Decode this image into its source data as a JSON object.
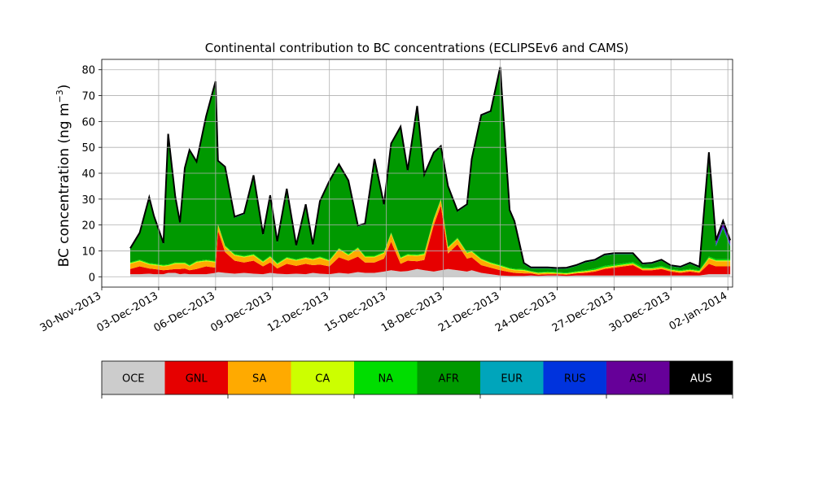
{
  "chart_data": {
    "type": "area",
    "stacked": true,
    "title": "Continental contribution to BC concentrations (ECLIPSEv6 and CAMS)",
    "xlabel": "",
    "ylabel": "BC concentration (ng m",
    "ylabel_unit_sup": "−3",
    "ylabel_close": ")",
    "ylim": [
      -4,
      84
    ],
    "xlim": [
      "2013-11-30T00:00",
      "2014-01-02T06:00"
    ],
    "grid": true,
    "yticks": [
      0,
      10,
      20,
      30,
      40,
      50,
      60,
      70,
      80
    ],
    "xticks": [
      "30-Nov-2013",
      "03-Dec-2013",
      "06-Dec-2013",
      "09-Dec-2013",
      "12-Dec-2013",
      "15-Dec-2013",
      "18-Dec-2013",
      "21-Dec-2013",
      "24-Dec-2013",
      "27-Dec-2013",
      "30-Dec-2013",
      "02-Jan-2014"
    ],
    "x": [
      "2013-12-01T12:00",
      "2013-12-02T00:00",
      "2013-12-02T12:00",
      "2013-12-02T18:00",
      "2013-12-03T06:00",
      "2013-12-03T12:00",
      "2013-12-03T21:00",
      "2013-12-04T03:00",
      "2013-12-04T09:00",
      "2013-12-04T15:00",
      "2013-12-05T00:00",
      "2013-12-05T12:00",
      "2013-12-06T00:00",
      "2013-12-06T03:00",
      "2013-12-06T12:00",
      "2013-12-07T00:00",
      "2013-12-07T12:00",
      "2013-12-08T00:00",
      "2013-12-08T12:00",
      "2013-12-08T21:00",
      "2013-12-09T06:00",
      "2013-12-09T18:00",
      "2013-12-10T06:00",
      "2013-12-10T18:00",
      "2013-12-11T03:00",
      "2013-12-11T12:00",
      "2013-12-12T00:00",
      "2013-12-12T12:00",
      "2013-12-13T00:00",
      "2013-12-13T12:00",
      "2013-12-13T21:00",
      "2013-12-14T09:00",
      "2013-12-14T21:00",
      "2013-12-15T06:00",
      "2013-12-15T18:00",
      "2013-12-16T03:00",
      "2013-12-16T15:00",
      "2013-12-17T00:00",
      "2013-12-17T12:00",
      "2013-12-17T21:00",
      "2013-12-18T06:00",
      "2013-12-18T18:00",
      "2013-12-19T06:00",
      "2013-12-19T12:00",
      "2013-12-20T00:00",
      "2013-12-20T12:00",
      "2013-12-21T00:00",
      "2013-12-21T12:00",
      "2013-12-21T18:00",
      "2013-12-22T06:00",
      "2013-12-22T15:00",
      "2013-12-23T00:00",
      "2013-12-23T12:00",
      "2013-12-24T00:00",
      "2013-12-24T12:00",
      "2013-12-25T00:00",
      "2013-12-25T12:00",
      "2013-12-26T00:00",
      "2013-12-26T12:00",
      "2013-12-27T00:00",
      "2013-12-27T12:00",
      "2013-12-28T00:00",
      "2013-12-28T12:00",
      "2013-12-29T00:00",
      "2013-12-29T12:00",
      "2013-12-30T00:00",
      "2013-12-30T12:00",
      "2013-12-31T00:00",
      "2013-12-31T12:00",
      "2014-01-01T00:00",
      "2014-01-01T09:00",
      "2014-01-01T18:00",
      "2014-01-02T03:00"
    ],
    "series": [
      {
        "name": "OCE",
        "color": "#cccccc",
        "values": [
          1,
          1,
          1.2,
          1,
          1,
          1.5,
          1.5,
          1,
          1.2,
          1,
          1,
          1,
          1.5,
          1.8,
          1.5,
          1.2,
          1.5,
          1.2,
          1,
          1.5,
          1.2,
          1,
          1.2,
          1,
          1.5,
          1.2,
          1,
          1.5,
          1.2,
          1.8,
          1.5,
          1.5,
          2,
          2.5,
          2,
          2.2,
          3,
          2.5,
          2,
          2.5,
          3,
          2.5,
          2,
          2.5,
          1.5,
          1,
          0.5,
          0.3,
          0.3,
          0.3,
          0.5,
          0.3,
          0.5,
          0.5,
          0.3,
          0.5,
          0.5,
          0.5,
          0.5,
          0.5,
          0.5,
          0.5,
          0.5,
          0.5,
          0.5,
          0.5,
          0.5,
          0.5,
          0.5,
          1,
          1,
          1,
          1
        ]
      },
      {
        "name": "GNL",
        "color": "#e60000",
        "values": [
          2,
          3,
          2,
          2,
          1.5,
          1.2,
          1.5,
          2,
          2,
          1.5,
          2,
          3,
          2,
          16,
          8,
          5,
          4,
          5,
          3,
          4,
          2,
          4,
          3,
          4,
          3,
          3.5,
          3,
          6,
          5,
          6,
          4,
          4,
          5,
          11,
          3,
          4,
          3,
          4,
          18,
          25,
          6,
          10,
          5,
          5,
          3,
          2.5,
          2,
          1.5,
          1.2,
          1,
          0.8,
          0.5,
          0.5,
          0.5,
          0.5,
          0.8,
          1,
          1.5,
          2.5,
          3,
          3.5,
          4,
          2,
          2,
          2.5,
          1.5,
          1,
          1.5,
          1,
          4,
          3,
          3,
          3
        ]
      },
      {
        "name": "SA",
        "color": "#ffaa00",
        "values": [
          2,
          2,
          1.5,
          1.5,
          1.5,
          1.5,
          2,
          2,
          1.8,
          1.5,
          2.5,
          2,
          2,
          2,
          2,
          2,
          2,
          2,
          1.5,
          2,
          1.5,
          2,
          2,
          2,
          2,
          2.5,
          2,
          3,
          2,
          3,
          2,
          2,
          2,
          3,
          2,
          2,
          2,
          2,
          2,
          2,
          2,
          2,
          2,
          2,
          2,
          1.5,
          1.5,
          1,
          1,
          1,
          0.5,
          0.5,
          0.5,
          0.3,
          0.3,
          0.3,
          0.5,
          0.5,
          0.5,
          0.5,
          0.5,
          0.5,
          0.5,
          0.5,
          0.5,
          0.5,
          0.5,
          0.5,
          0.5,
          2,
          2,
          2,
          2
        ]
      },
      {
        "name": "CA",
        "color": "#ccff00",
        "values": [
          0.3,
          0.3,
          0.3,
          0.3,
          0.3,
          0.3,
          0.3,
          0.3,
          0.3,
          0.3,
          0.3,
          0.3,
          0.3,
          0.3,
          0.3,
          0.3,
          0.3,
          0.3,
          0.3,
          0.3,
          0.3,
          0.3,
          0.3,
          0.3,
          0.3,
          0.3,
          0.3,
          0.3,
          0.3,
          0.3,
          0.3,
          0.3,
          0.3,
          0.3,
          0.3,
          0.3,
          0.3,
          0.3,
          0.3,
          0.3,
          0.3,
          0.3,
          0.3,
          0.3,
          0.3,
          0.3,
          0.3,
          0.3,
          0.3,
          0.3,
          0.2,
          0.2,
          0.2,
          0.2,
          0.2,
          0.2,
          0.2,
          0.2,
          0.2,
          0.2,
          0.2,
          0.2,
          0.2,
          0.2,
          0.2,
          0.2,
          0.2,
          0.2,
          0.2,
          0.3,
          0.3,
          0.3,
          0.3
        ]
      },
      {
        "name": "NA",
        "color": "#00dd00",
        "values": [
          0.3,
          0.3,
          0.3,
          0.3,
          0.3,
          0.3,
          0.3,
          0.3,
          0.3,
          0.3,
          0.3,
          0.3,
          0.3,
          0.3,
          0.3,
          0.3,
          0.3,
          0.3,
          0.3,
          0.3,
          0.3,
          0.3,
          0.3,
          0.3,
          0.3,
          0.3,
          0.3,
          0.3,
          0.3,
          0.3,
          0.3,
          0.3,
          0.3,
          0.3,
          0.3,
          0.3,
          0.3,
          0.3,
          0.3,
          0.3,
          0.3,
          0.3,
          0.3,
          0.3,
          0.3,
          0.3,
          0.3,
          0.3,
          0.3,
          0.3,
          0.2,
          0.2,
          0.3,
          0.3,
          0.3,
          0.3,
          0.3,
          0.5,
          0.5,
          0.5,
          0.5,
          0.5,
          0.5,
          0.3,
          0.5,
          0.3,
          0.3,
          0.3,
          0.3,
          0.5,
          0.5,
          0.5,
          0.5
        ]
      },
      {
        "name": "AFR",
        "color": "#009900",
        "values": [
          5,
          10,
          25,
          18,
          8,
          50,
          25,
          15,
          36,
          44,
          38,
          55,
          69,
          24,
          30,
          14,
          16,
          30,
          10,
          23,
          8,
          26,
          5,
          20,
          5,
          21,
          30,
          32,
          28,
          8,
          12,
          37,
          18,
          34,
          50,
          32,
          57,
          30,
          25,
          20,
          23,
          10,
          18,
          35,
          55,
          58,
          76,
          22,
          18,
          2,
          1,
          1.5,
          1.2,
          1.2,
          1.5,
          2,
          3,
          3,
          4,
          4,
          3.5,
          3,
          1,
          1.5,
          2,
          1,
          1,
          2,
          1,
          38,
          5,
          12,
          5
        ]
      },
      {
        "name": "EUR",
        "color": "#00a5bb",
        "values": [
          0.1,
          0.1,
          0.1,
          0.1,
          0.1,
          0.1,
          0.1,
          0.1,
          0.1,
          0.1,
          0.1,
          0.1,
          0.1,
          0.1,
          0.1,
          0.1,
          0.1,
          0.1,
          0.1,
          0.1,
          0.1,
          0.1,
          0.1,
          0.1,
          0.1,
          0.1,
          0.1,
          0.1,
          0.1,
          0.1,
          0.1,
          0.1,
          0.1,
          0.1,
          0.1,
          0.1,
          0.1,
          0.1,
          0.1,
          0.1,
          0.1,
          0.1,
          0.1,
          0.1,
          0.1,
          0.1,
          0.1,
          0.1,
          0.1,
          0.1,
          0.1,
          0.1,
          0.1,
          0.1,
          0.1,
          0.1,
          0.1,
          0.1,
          0.1,
          0.1,
          0.1,
          0.1,
          0.1,
          0.1,
          0.1,
          0.1,
          0.1,
          0.1,
          0.1,
          0.3,
          0.3,
          0.3,
          0.3
        ]
      },
      {
        "name": "RUS",
        "color": "#0033dd",
        "values": [
          0.1,
          0.1,
          0.1,
          0.1,
          0.1,
          0.1,
          0.1,
          0.1,
          0.1,
          0.1,
          0.1,
          0.1,
          0.1,
          0.1,
          0.1,
          0.1,
          0.1,
          0.1,
          0.1,
          0.1,
          0.1,
          0.1,
          0.1,
          0.1,
          0.1,
          0.1,
          0.1,
          0.1,
          0.1,
          0.1,
          0.1,
          0.1,
          0.1,
          0.1,
          0.1,
          0.1,
          0.1,
          0.1,
          0.1,
          0.1,
          0.1,
          0.1,
          0.1,
          0.1,
          0.1,
          0.1,
          0.1,
          0.1,
          0.1,
          0.1,
          0.1,
          0.1,
          0.1,
          0.1,
          0.1,
          0.1,
          0.1,
          0.1,
          0.1,
          0.1,
          0.1,
          0.1,
          0.1,
          0.1,
          0.1,
          0.1,
          0.1,
          0.1,
          0.1,
          0.5,
          0.5,
          0.5,
          0.5
        ]
      },
      {
        "name": "ASI",
        "color": "#660099",
        "values": [
          0.1,
          0.1,
          0.1,
          0.1,
          0.1,
          0.1,
          0.1,
          0.1,
          0.1,
          0.1,
          0.1,
          0.1,
          0.1,
          0.1,
          0.1,
          0.1,
          0.1,
          0.1,
          0.1,
          0.1,
          0.1,
          0.1,
          0.1,
          0.1,
          0.1,
          0.1,
          0.1,
          0.1,
          0.1,
          0.1,
          0.1,
          0.1,
          0.1,
          0.1,
          0.1,
          0.1,
          0.1,
          0.1,
          0.1,
          0.1,
          0.1,
          0.1,
          0.1,
          0.1,
          0.1,
          0.1,
          0.1,
          0.1,
          0.1,
          0.1,
          0.1,
          0.1,
          0.1,
          0.1,
          0.1,
          0.1,
          0.1,
          0.1,
          0.1,
          0.1,
          0.1,
          0.1,
          0.1,
          0.1,
          0.1,
          0.1,
          0.1,
          0.1,
          0.1,
          1,
          1,
          1.5,
          1
        ]
      },
      {
        "name": "AUS",
        "color": "#000000",
        "values": [
          0.1,
          0.1,
          0.1,
          0.1,
          0.1,
          0.1,
          0.1,
          0.1,
          0.1,
          0.1,
          0.1,
          0.1,
          0.1,
          0.1,
          0.1,
          0.1,
          0.1,
          0.1,
          0.1,
          0.1,
          0.1,
          0.1,
          0.1,
          0.1,
          0.1,
          0.1,
          0.1,
          0.1,
          0.1,
          0.1,
          0.1,
          0.1,
          0.1,
          0.1,
          0.1,
          0.1,
          0.1,
          0.1,
          0.1,
          0.1,
          0.1,
          0.1,
          0.1,
          0.1,
          0.1,
          0.1,
          0.1,
          0.1,
          0.1,
          0.1,
          0.1,
          0.1,
          0.1,
          0.1,
          0.1,
          0.1,
          0.1,
          0.1,
          0.1,
          0.1,
          0.1,
          0.1,
          0.1,
          0.1,
          0.1,
          0.1,
          0.1,
          0.1,
          0.1,
          0.5,
          0.5,
          0.5,
          0.5
        ]
      }
    ],
    "legend": "colorbar below plot"
  }
}
